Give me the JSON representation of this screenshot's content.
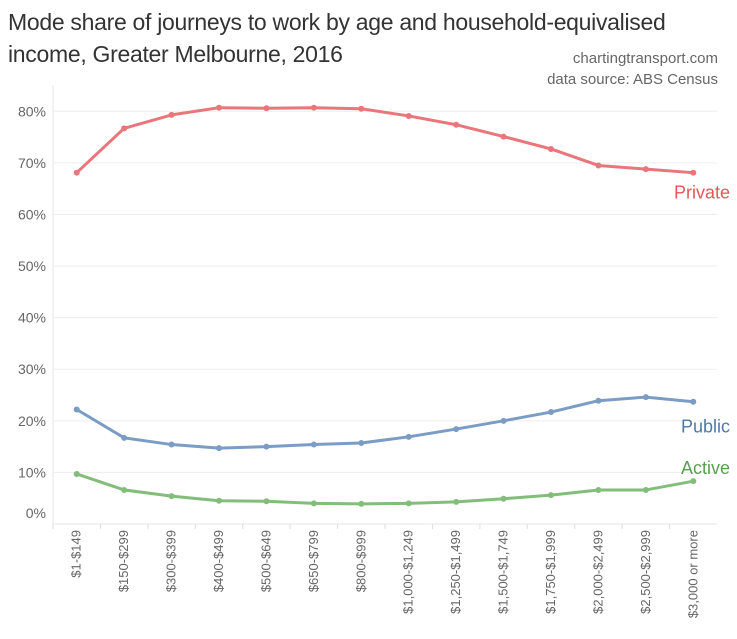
{
  "chart_data": {
    "type": "line",
    "title": "Mode share of journeys to work by age and household-equivalised income, Greater Melbourne, 2016",
    "credits": [
      "chartingtransport.com",
      "data source: ABS Census"
    ],
    "categories": [
      "$1-$149",
      "$150-$299",
      "$300-$399",
      "$400-$499",
      "$500-$649",
      "$650-$799",
      "$800-$999",
      "$1,000-$1,249",
      "$1,250-$1,499",
      "$1,500-$1,749",
      "$1,750-$1,999",
      "$2,000-$2,499",
      "$2,500-$2,999",
      "$3,000 or more"
    ],
    "ylim": [
      0,
      80
    ],
    "yticks": [
      "0%",
      "10%",
      "20%",
      "30%",
      "40%",
      "50%",
      "60%",
      "70%",
      "80%"
    ],
    "grid": true,
    "series": [
      {
        "name": "Private",
        "color": "#e8767a",
        "label_color": "#e15759",
        "values": [
          68.1,
          76.7,
          79.3,
          80.7,
          80.6,
          80.7,
          80.5,
          79.1,
          77.4,
          75.1,
          72.7,
          69.5,
          68.8,
          68.1
        ]
      },
      {
        "name": "Public",
        "color": "#7b9cc4",
        "label_color": "#4e79a7",
        "values": [
          22.2,
          16.7,
          15.4,
          14.7,
          15.0,
          15.4,
          15.7,
          16.9,
          18.4,
          20.0,
          21.7,
          23.9,
          24.6,
          23.7
        ]
      },
      {
        "name": "Active",
        "color": "#82bd7a",
        "label_color": "#59a14f",
        "values": [
          9.7,
          6.6,
          5.4,
          4.5,
          4.4,
          4.0,
          3.9,
          4.0,
          4.3,
          4.9,
          5.6,
          6.6,
          6.6,
          8.3
        ]
      }
    ]
  }
}
